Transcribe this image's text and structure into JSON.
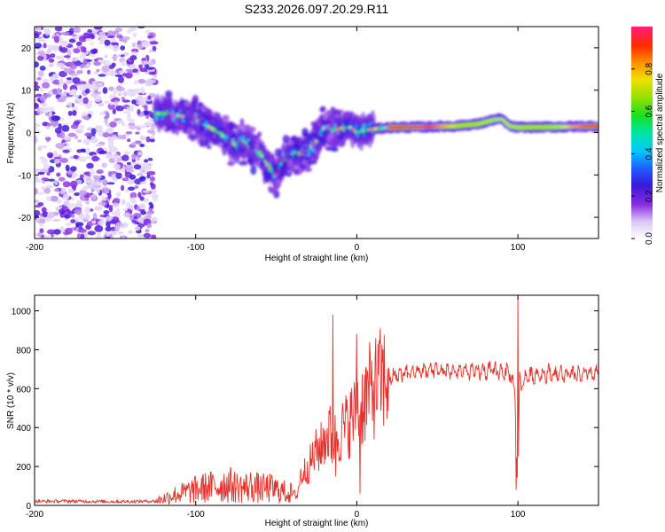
{
  "title": "S233.2026.097.20.29.R11",
  "chart_data": [
    {
      "type": "heatmap",
      "xlabel": "Height of straight line (km)",
      "ylabel": "Frequency (Hz)",
      "xlim": [
        -200,
        150
      ],
      "ylim": [
        -25,
        25
      ],
      "xticks": [
        -200,
        -100,
        0,
        100
      ],
      "yticks": [
        -20,
        -10,
        0,
        10,
        20
      ],
      "colorbar": {
        "label": "Normalized spectral amplitude",
        "range": [
          0,
          1
        ],
        "ticks": [
          0.0,
          0.2,
          0.4,
          0.6,
          0.8
        ]
      },
      "ridge": {
        "description": "frequency of dominant spectral line vs height",
        "x": [
          -125,
          -118,
          -110,
          -100,
          -95,
          -90,
          -85,
          -80,
          -75,
          -70,
          -65,
          -60,
          -55,
          -50,
          -45,
          -40,
          -35,
          -30,
          -25,
          -20,
          -15,
          -10,
          -5,
          0,
          5,
          10,
          20,
          40,
          60,
          75,
          80,
          85,
          90,
          95,
          100,
          120,
          150
        ],
        "y": [
          4.5,
          4.5,
          4,
          3,
          2,
          1,
          0,
          -2,
          -3,
          -2,
          -4,
          -5,
          -8,
          -10,
          -6,
          -5,
          -5,
          -4,
          -2,
          1.5,
          0.5,
          1,
          1.5,
          0,
          0.5,
          0.8,
          1.2,
          1.3,
          1.5,
          2.0,
          2.5,
          3.0,
          3.2,
          1.5,
          1.2,
          1.3,
          1.5
        ]
      },
      "noise_region": {
        "x_from": -200,
        "x_to": -125,
        "note": "diffuse low-amplitude noise over all frequencies"
      }
    },
    {
      "type": "line",
      "xlabel": "Height of straight line (km)",
      "ylabel": "SNR (10 * v/v)",
      "xlim": [
        -200,
        150
      ],
      "ylim": [
        0,
        1080
      ],
      "xticks": [
        -200,
        -100,
        0,
        100
      ],
      "yticks": [
        0,
        200,
        400,
        600,
        800,
        1000
      ],
      "color": "#e8302a",
      "series": [
        {
          "name": "SNR",
          "x": [
            -200,
            -180,
            -160,
            -140,
            -125,
            -120,
            -115,
            -110,
            -105,
            -100,
            -95,
            -90,
            -85,
            -80,
            -75,
            -70,
            -65,
            -60,
            -55,
            -50,
            -45,
            -40,
            -37,
            -35,
            -30,
            -25,
            -22,
            -20,
            -17,
            -15,
            -13,
            -10,
            -7,
            -5,
            -3,
            -1,
            0,
            3,
            6,
            10,
            15,
            20,
            30,
            40,
            50,
            60,
            70,
            80,
            90,
            95,
            98,
            99,
            100,
            101,
            102,
            105,
            110,
            120,
            130,
            140,
            150
          ],
          "y": [
            20,
            22,
            20,
            20,
            22,
            35,
            50,
            60,
            70,
            80,
            90,
            95,
            100,
            110,
            95,
            90,
            100,
            85,
            90,
            80,
            70,
            60,
            50,
            150,
            200,
            280,
            300,
            340,
            380,
            300,
            350,
            380,
            400,
            430,
            450,
            460,
            500,
            520,
            560,
            600,
            640,
            660,
            680,
            690,
            690,
            690,
            685,
            690,
            690,
            680,
            600,
            300,
            80,
            650,
            620,
            660,
            670,
            680,
            670,
            670,
            680
          ]
        }
      ],
      "spikes": [
        {
          "x": -37,
          "y": 40
        },
        {
          "x": -15,
          "y": 980
        },
        {
          "x": -13,
          "y": 150
        },
        {
          "x": 0,
          "y": 880
        },
        {
          "x": 2,
          "y": 60
        },
        {
          "x": 100,
          "y": 1075
        },
        {
          "x": 99,
          "y": 80
        }
      ]
    }
  ]
}
